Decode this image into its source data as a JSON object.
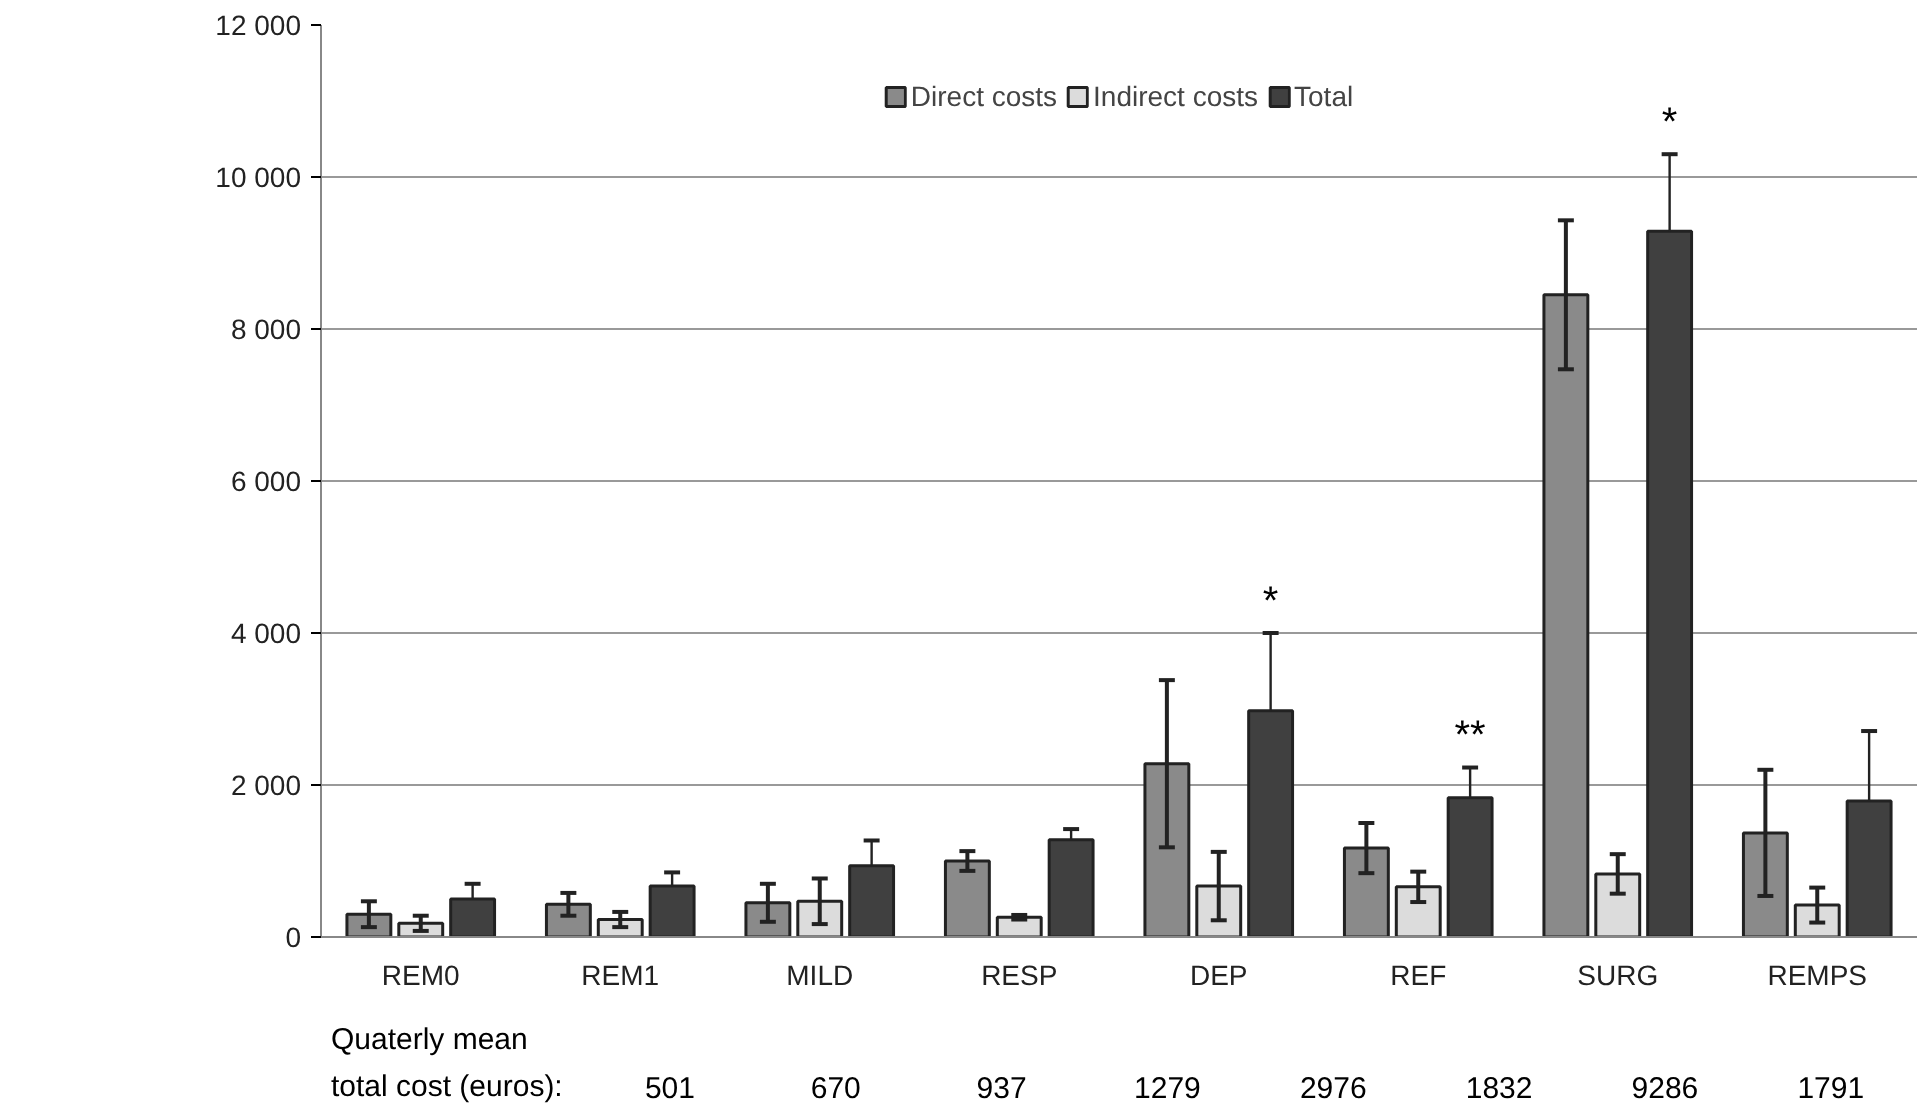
{
  "chart_data": {
    "type": "bar",
    "categories": [
      "REM0",
      "REM1",
      "MILD",
      "RESP",
      "DEP",
      "REF",
      "SURG",
      "REMPS"
    ],
    "series": [
      {
        "name": "Direct costs",
        "color": "#8a8a8a",
        "values": [
          300,
          430,
          450,
          1000,
          2280,
          1170,
          8450,
          1370
        ],
        "errors": [
          170,
          150,
          250,
          130,
          1100,
          330,
          980,
          830
        ]
      },
      {
        "name": "Indirect costs",
        "color": "#dcdcdc",
        "values": [
          180,
          230,
          470,
          260,
          670,
          660,
          830,
          420
        ],
        "errors": [
          100,
          100,
          300,
          30,
          450,
          200,
          260,
          230
        ]
      },
      {
        "name": "Total",
        "color": "#404040",
        "values": [
          501,
          670,
          937,
          1279,
          2976,
          1832,
          9286,
          1791
        ],
        "errors": [
          [
            501,
            700
          ],
          [
            670,
            850
          ],
          [
            937,
            1270
          ],
          [
            1279,
            1420
          ],
          [
            2976,
            4000
          ],
          [
            1832,
            2230
          ],
          [
            9286,
            10300
          ],
          [
            1791,
            2710
          ]
        ],
        "value_labels": [
          null,
          null,
          null,
          null,
          "*",
          "**",
          "*",
          null
        ]
      }
    ],
    "ylim": [
      0,
      12000
    ],
    "yticks": [
      {
        "value": 0,
        "label": "0"
      },
      {
        "value": 2000,
        "label": "2 000"
      },
      {
        "value": 4000,
        "label": "4 000"
      },
      {
        "value": 6000,
        "label": "6 000"
      },
      {
        "value": 8000,
        "label": "8 000"
      },
      {
        "value": 10000,
        "label": "10 000"
      },
      {
        "value": 12000,
        "label": "12 000"
      }
    ],
    "grid": "y",
    "legend": "top",
    "annotations": [
      "Quaterly mean\ntotal cost (euros):",
      "501",
      "670",
      "937",
      "1279",
      "2976",
      "1832",
      "9286",
      "1791"
    ]
  }
}
